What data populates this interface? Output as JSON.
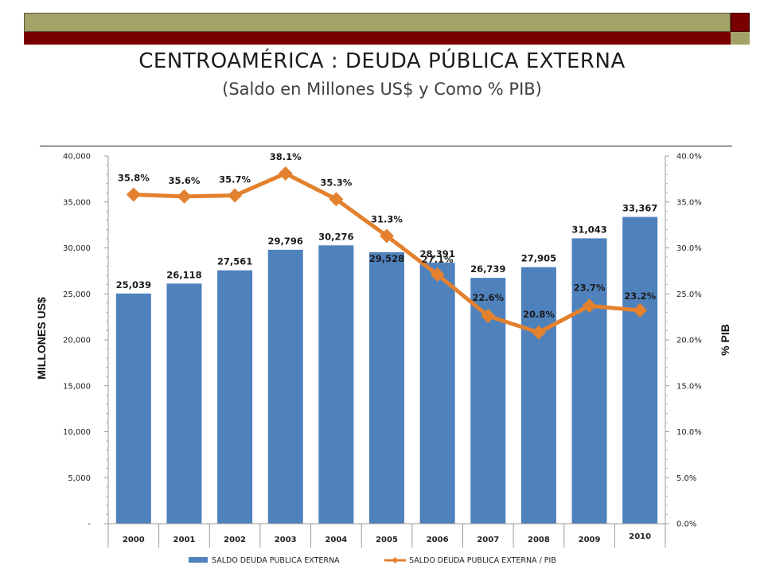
{
  "header": {
    "title": "CENTROAMÉRICA : DEUDA PÚBLICA EXTERNA",
    "subtitle": "(Saldo en Millones US$ y Como % PIB)"
  },
  "colors": {
    "bar": "#4f81bd",
    "line": "#e3812f",
    "band_olive": "#a3a367",
    "band_maroon": "#7a0000"
  },
  "chart_data": {
    "type": "bar+line",
    "title": "CENTROAMÉRICA : DEUDA PÚBLICA EXTERNA",
    "subtitle": "(Saldo en Millones US$ y Como % PIB)",
    "categories": [
      "2000",
      "2001",
      "2002",
      "2003",
      "2004",
      "2005",
      "2006",
      "2007",
      "2008",
      "2009",
      "2010"
    ],
    "series": [
      {
        "name": "SALDO DEUDA PUBLICA EXTERNA",
        "type": "bar",
        "axis": "left",
        "values": [
          25039,
          26118,
          27561,
          29796,
          30276,
          29528,
          28391,
          26739,
          27905,
          31043,
          33367
        ],
        "labels": [
          "25,039",
          "26,118",
          "27,561",
          "29,796",
          "30,276",
          "29,528",
          "28,391",
          "26,739",
          "27,905",
          "31,043",
          "33,367"
        ]
      },
      {
        "name": "SALDO DEUDA PUBLICA EXTERNA  / PIB",
        "type": "line",
        "axis": "right",
        "values": [
          35.8,
          35.6,
          35.7,
          38.1,
          35.3,
          31.3,
          27.1,
          22.6,
          20.8,
          23.7,
          23.2
        ],
        "labels": [
          "35.8%",
          "35.6%",
          "35.7%",
          "38.1%",
          "35.3%",
          "31.3%",
          "27.1%",
          "22.6%",
          "20.8%",
          "23.7%",
          "23.2%"
        ]
      }
    ],
    "ylabel": "MILLONES US$",
    "y2label": "% PIB",
    "ylim": [
      0,
      40000
    ],
    "y2lim": [
      0,
      40
    ],
    "yticks": [
      "-",
      "5,000",
      "10,000",
      "15,000",
      "20,000",
      "25,000",
      "30,000",
      "35,000",
      "40,000"
    ],
    "y2ticks": [
      "0.0%",
      "5.0%",
      "10.0%",
      "15.0%",
      "20.0%",
      "25.0%",
      "30.0%",
      "35.0%",
      "40.0%"
    ],
    "legend_position": "bottom"
  }
}
